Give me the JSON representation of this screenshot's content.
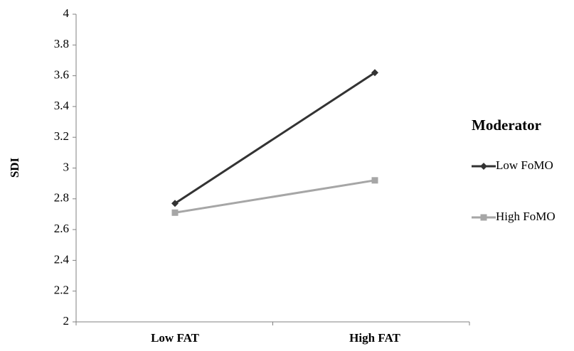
{
  "chart_data": {
    "type": "line",
    "title": "",
    "xlabel": "",
    "ylabel": "SDI",
    "categories": [
      "Low FAT",
      "High FAT"
    ],
    "ylim": [
      2,
      4
    ],
    "yticks": [
      "2",
      "2.2",
      "2.4",
      "2.6",
      "2.8",
      "3",
      "3.2",
      "3.4",
      "3.6",
      "3.8",
      "4"
    ],
    "grid": false,
    "legend": {
      "title": "Moderator",
      "placement": "right"
    },
    "series": [
      {
        "name": "Low FoMO",
        "values": [
          2.77,
          3.62
        ],
        "color": "#333333",
        "marker": "diamond"
      },
      {
        "name": "High FoMO",
        "values": [
          2.71,
          2.92
        ],
        "color": "#a6a6a6",
        "marker": "square"
      }
    ]
  }
}
